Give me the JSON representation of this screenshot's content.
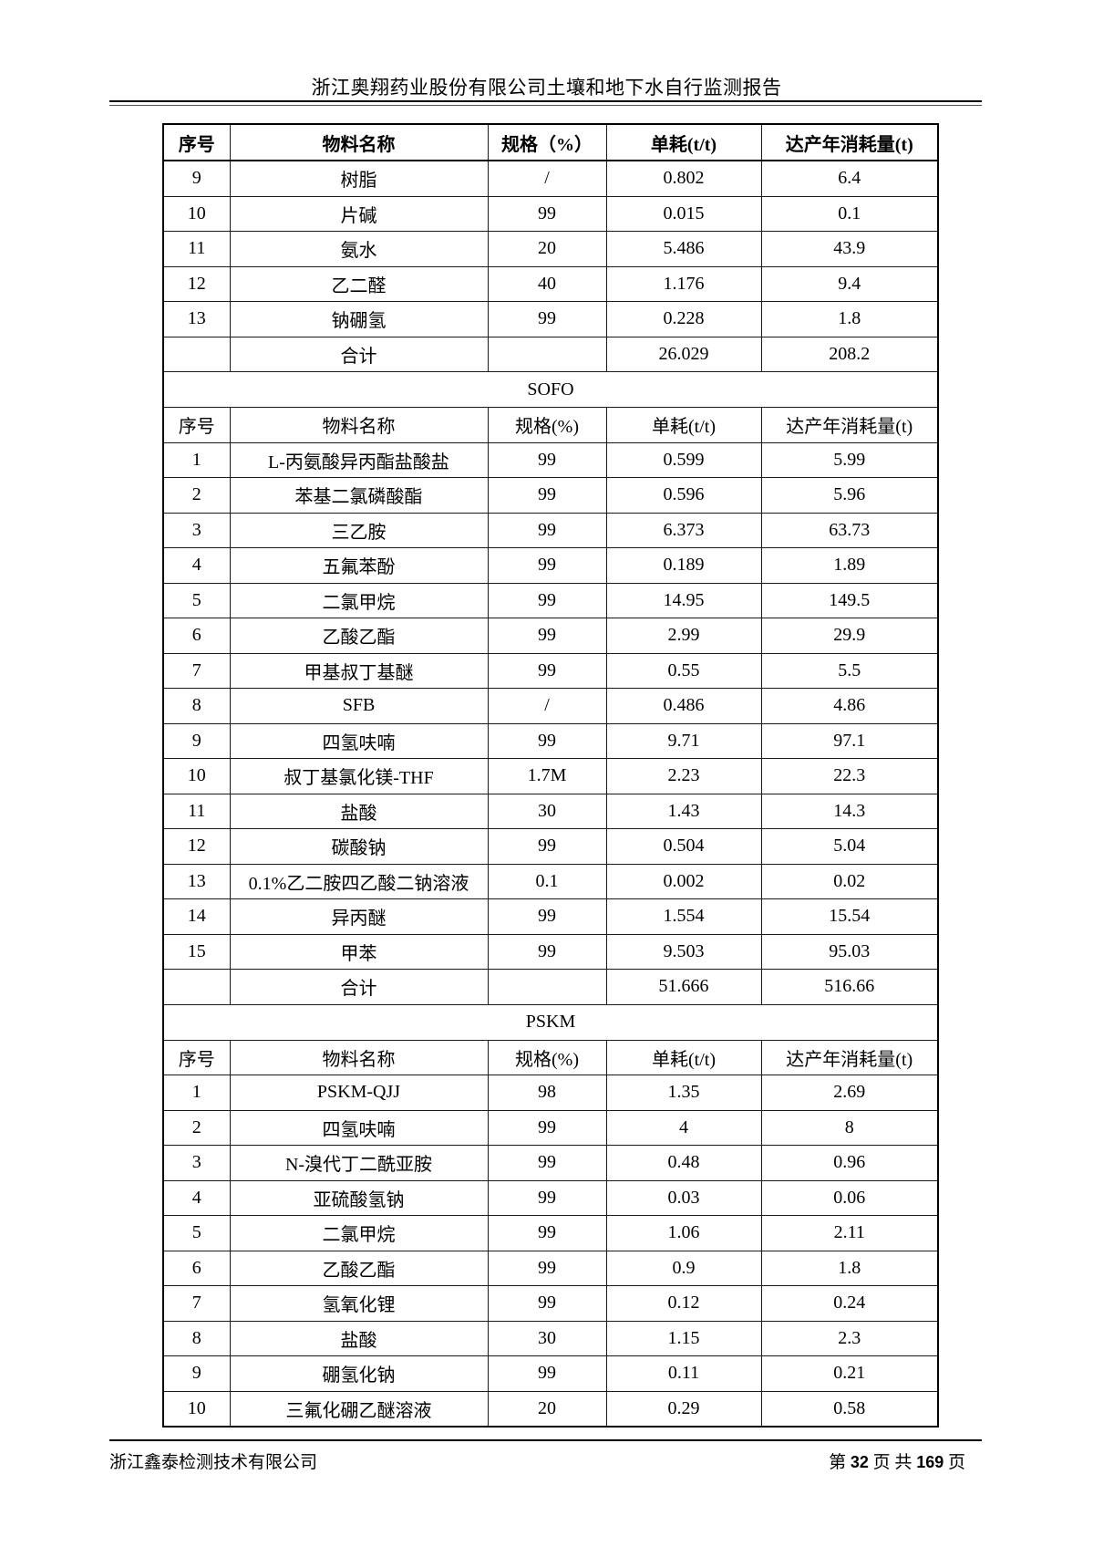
{
  "header": {
    "title": "浙江奥翔药业股份有限公司土壤和地下水自行监测报告"
  },
  "table": {
    "sections": [
      {
        "title": null,
        "header_bold": true,
        "columns": [
          "序号",
          "物料名称",
          "规格（%）",
          "单耗(t/t)",
          "达产年消耗量(t)"
        ],
        "rows": [
          [
            "9",
            "树脂",
            "/",
            "0.802",
            "6.4"
          ],
          [
            "10",
            "片碱",
            "99",
            "0.015",
            "0.1"
          ],
          [
            "11",
            "氨水",
            "20",
            "5.486",
            "43.9"
          ],
          [
            "12",
            "乙二醛",
            "40",
            "1.176",
            "9.4"
          ],
          [
            "13",
            "钠硼氢",
            "99",
            "0.228",
            "1.8"
          ],
          [
            "",
            "合计",
            "",
            "26.029",
            "208.2"
          ]
        ]
      },
      {
        "title": "SOFO",
        "header_bold": false,
        "columns": [
          "序号",
          "物料名称",
          "规格(%)",
          "单耗(t/t)",
          "达产年消耗量(t)"
        ],
        "rows": [
          [
            "1",
            "L-丙氨酸异丙酯盐酸盐",
            "99",
            "0.599",
            "5.99"
          ],
          [
            "2",
            "苯基二氯磷酸酯",
            "99",
            "0.596",
            "5.96"
          ],
          [
            "3",
            "三乙胺",
            "99",
            "6.373",
            "63.73"
          ],
          [
            "4",
            "五氟苯酚",
            "99",
            "0.189",
            "1.89"
          ],
          [
            "5",
            "二氯甲烷",
            "99",
            "14.95",
            "149.5"
          ],
          [
            "6",
            "乙酸乙酯",
            "99",
            "2.99",
            "29.9"
          ],
          [
            "7",
            "甲基叔丁基醚",
            "99",
            "0.55",
            "5.5"
          ],
          [
            "8",
            "SFB",
            "/",
            "0.486",
            "4.86"
          ],
          [
            "9",
            "四氢呋喃",
            "99",
            "9.71",
            "97.1"
          ],
          [
            "10",
            "叔丁基氯化镁-THF",
            "1.7M",
            "2.23",
            "22.3"
          ],
          [
            "11",
            "盐酸",
            "30",
            "1.43",
            "14.3"
          ],
          [
            "12",
            "碳酸钠",
            "99",
            "0.504",
            "5.04"
          ],
          [
            "13",
            "0.1%乙二胺四乙酸二钠溶液",
            "0.1",
            "0.002",
            "0.02"
          ],
          [
            "14",
            "异丙醚",
            "99",
            "1.554",
            "15.54"
          ],
          [
            "15",
            "甲苯",
            "99",
            "9.503",
            "95.03"
          ],
          [
            "",
            "合计",
            "",
            "51.666",
            "516.66"
          ]
        ]
      },
      {
        "title": "PSKM",
        "header_bold": false,
        "columns": [
          "序号",
          "物料名称",
          "规格(%)",
          "单耗(t/t)",
          "达产年消耗量(t)"
        ],
        "rows": [
          [
            "1",
            "PSKM-QJJ",
            "98",
            "1.35",
            "2.69"
          ],
          [
            "2",
            "四氢呋喃",
            "99",
            "4",
            "8"
          ],
          [
            "3",
            "N-溴代丁二酰亚胺",
            "99",
            "0.48",
            "0.96"
          ],
          [
            "4",
            "亚硫酸氢钠",
            "99",
            "0.03",
            "0.06"
          ],
          [
            "5",
            "二氯甲烷",
            "99",
            "1.06",
            "2.11"
          ],
          [
            "6",
            "乙酸乙酯",
            "99",
            "0.9",
            "1.8"
          ],
          [
            "7",
            "氢氧化锂",
            "99",
            "0.12",
            "0.24"
          ],
          [
            "8",
            "盐酸",
            "30",
            "1.15",
            "2.3"
          ],
          [
            "9",
            "硼氢化钠",
            "99",
            "0.11",
            "0.21"
          ],
          [
            "10",
            "三氟化硼乙醚溶液",
            "20",
            "0.29",
            "0.58"
          ]
        ]
      }
    ]
  },
  "footer": {
    "company": "浙江鑫泰检测技术有限公司",
    "page": {
      "prefix": "第",
      "current": "32",
      "middle": "页 共",
      "total": "169",
      "suffix": "页"
    }
  }
}
